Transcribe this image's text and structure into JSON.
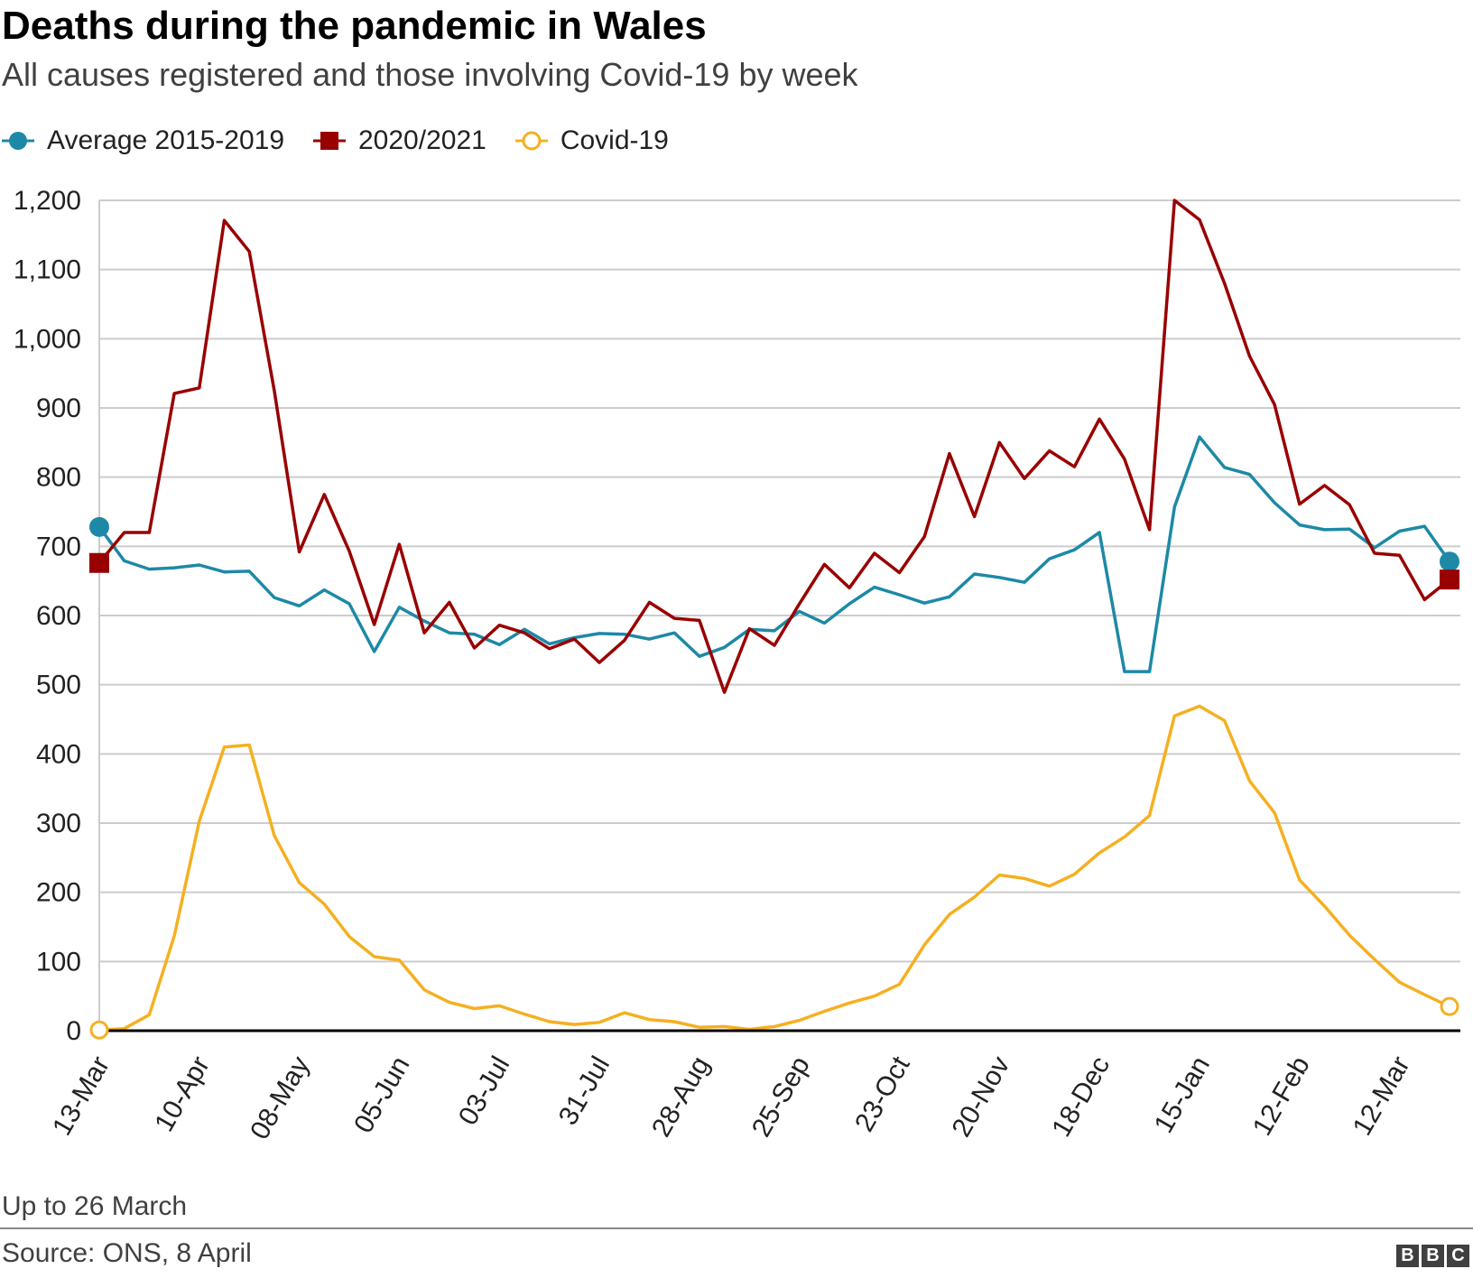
{
  "header": {
    "title": "Deaths during the pandemic in Wales",
    "subtitle": "All causes registered and those involving Covid-19 by week"
  },
  "legend": [
    {
      "label": "Average 2015-2019",
      "color": "#1d89a6",
      "marker": "circle"
    },
    {
      "label": "2020/2021",
      "color": "#990000",
      "marker": "square"
    },
    {
      "label": "Covid-19",
      "color": "#f5b021",
      "marker": "hollow-circle"
    }
  ],
  "footer": {
    "note": "Up to 26 March",
    "source": "Source: ONS, 8 April",
    "logo": [
      "B",
      "B",
      "C"
    ]
  },
  "chart_data": {
    "type": "line",
    "title": "Deaths during the pandemic in Wales",
    "subtitle": "All causes registered and those involving Covid-19 by week",
    "xlabel": "",
    "ylabel": "",
    "ylim": [
      0,
      1200
    ],
    "yticks": [
      0,
      100,
      200,
      300,
      400,
      500,
      600,
      700,
      800,
      900,
      1000,
      1100,
      1200
    ],
    "ytick_labels": [
      "0",
      "100",
      "200",
      "300",
      "400",
      "500",
      "600",
      "700",
      "800",
      "900",
      "1,000",
      "1,100",
      "1,200"
    ],
    "grid": true,
    "legend_position": "top-left",
    "x_tick_labels": [
      "13-Mar",
      "10-Apr",
      "08-May",
      "05-Jun",
      "03-Jul",
      "31-Jul",
      "28-Aug",
      "25-Sep",
      "23-Oct",
      "20-Nov",
      "18-Dec",
      "15-Jan",
      "12-Feb",
      "12-Mar"
    ],
    "x_tick_every": 4,
    "series": [
      {
        "name": "Average 2015-2019",
        "color": "#1d89a6",
        "values": [
          728,
          679,
          667,
          669,
          673,
          663,
          664,
          626,
          614,
          637,
          617,
          548,
          612,
          592,
          575,
          573,
          558,
          580,
          559,
          568,
          574,
          573,
          566,
          575,
          541,
          554,
          580,
          578,
          606,
          589,
          617,
          641,
          630,
          618,
          627,
          660,
          655,
          648,
          682,
          695,
          720,
          519,
          519,
          757,
          858,
          814,
          804,
          763,
          731,
          724,
          725,
          698,
          722,
          729,
          678
        ]
      },
      {
        "name": "2020/2021",
        "color": "#990000",
        "values": [
          676,
          720,
          720,
          921,
          929,
          1171,
          1126,
          925,
          692,
          775,
          693,
          587,
          703,
          575,
          619,
          553,
          586,
          575,
          552,
          566,
          532,
          564,
          619,
          596,
          593,
          489,
          581,
          557,
          617,
          674,
          640,
          690,
          662,
          714,
          834,
          743,
          850,
          798,
          838,
          815,
          884,
          826,
          724,
          1200,
          1172,
          1080,
          975,
          905,
          761,
          788,
          760,
          690,
          687,
          623,
          652
        ]
      },
      {
        "name": "Covid-19",
        "color": "#f5b021",
        "values": [
          1,
          3,
          23,
          137,
          303,
          410,
          413,
          282,
          214,
          183,
          136,
          107,
          102,
          59,
          41,
          32,
          36,
          24,
          13,
          9,
          12,
          26,
          16,
          13,
          5,
          6,
          2,
          6,
          15,
          28,
          40,
          50,
          67,
          124,
          168,
          193,
          225,
          220,
          209,
          226,
          257,
          280,
          311,
          455,
          469,
          448,
          361,
          315,
          218,
          180,
          138,
          103,
          70,
          52,
          35
        ]
      }
    ]
  }
}
